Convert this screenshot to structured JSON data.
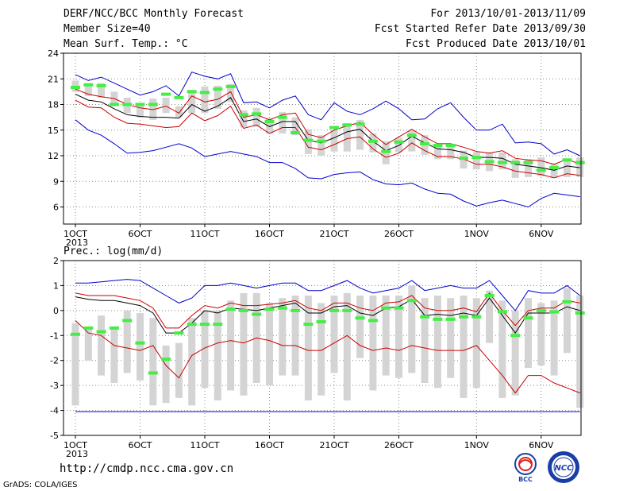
{
  "header": {
    "title": "DERF/NCC/BCC Monthly Forecast",
    "member_size": "Member Size=40",
    "variable": "Mean Surf. Temp.: °C",
    "forecast_period": "For 2013/10/01-2013/11/09",
    "fcst_started": "Fcst Started Refer Date 2013/09/30",
    "fcst_produced": "Fcst Produced Date 2013/10/01"
  },
  "panel2_label": "Prec.: log(mm/d)",
  "footer": {
    "url": "http://cmdp.ncc.cma.gov.cn",
    "grads": "GrADS: COLA/IGES"
  },
  "logos": {
    "bcc": "BCC",
    "ncc": "NCC"
  },
  "colors": {
    "max": "#0000cc",
    "min_max_band": "#cc0000",
    "mean": "#000000",
    "median_bar": "#44ee44",
    "box": "#d4d4d4",
    "grid": "#888888"
  },
  "chart_data": [
    {
      "type": "line",
      "title": "Mean Surf. Temp.: °C",
      "x_start_date": "2013-10-01",
      "x_ticks": [
        "1OCT\n2013",
        "6OCT",
        "11OCT",
        "16OCT",
        "21OCT",
        "26OCT",
        "1NOV",
        "6NOV"
      ],
      "x_tick_days": [
        0,
        5,
        10,
        15,
        20,
        25,
        31,
        36
      ],
      "ylim": [
        4,
        24
      ],
      "yticks": [
        6,
        9,
        12,
        15,
        18,
        21,
        24
      ],
      "grid": true,
      "days": 40,
      "series": [
        {
          "name": "max",
          "values": [
            21.5,
            20.8,
            21.2,
            20.5,
            19.8,
            19.1,
            19.5,
            20.2,
            19.0,
            21.8,
            21.3,
            21.0,
            21.6,
            18.2,
            18.3,
            17.6,
            18.5,
            19.0,
            16.8,
            16.2,
            18.2,
            17.2,
            16.8,
            17.5,
            18.4,
            17.5,
            16.2,
            16.3,
            17.5,
            18.2,
            16.5,
            15.0,
            15.0,
            15.7,
            13.5,
            13.6,
            13.4,
            12.2,
            12.7,
            12.0
          ]
        },
        {
          "name": "upper",
          "values": [
            19.8,
            19.2,
            18.9,
            18.7,
            18.0,
            17.6,
            17.4,
            17.8,
            17.0,
            19.0,
            18.3,
            18.6,
            19.5,
            16.5,
            16.8,
            16.2,
            16.8,
            17.0,
            14.5,
            14.1,
            15.0,
            15.5,
            15.9,
            14.5,
            13.3,
            14.2,
            15.1,
            14.2,
            13.4,
            13.4,
            13.0,
            12.5,
            12.3,
            12.6,
            11.7,
            11.5,
            11.4,
            11.0,
            11.6,
            11.0
          ]
        },
        {
          "name": "mean",
          "values": [
            19.2,
            18.5,
            18.3,
            17.5,
            16.8,
            16.6,
            16.5,
            16.5,
            16.4,
            18.0,
            17.2,
            17.8,
            18.8,
            16.0,
            16.3,
            15.4,
            16.0,
            16.0,
            13.8,
            13.5,
            14.1,
            14.8,
            15.1,
            13.7,
            12.6,
            13.2,
            14.3,
            13.5,
            12.8,
            12.7,
            12.4,
            11.8,
            11.8,
            11.7,
            11.0,
            10.8,
            10.6,
            10.3,
            10.8,
            10.6
          ]
        },
        {
          "name": "lower",
          "values": [
            18.5,
            17.7,
            17.6,
            16.5,
            15.8,
            15.7,
            15.5,
            15.3,
            15.4,
            17.0,
            16.1,
            16.7,
            17.8,
            15.2,
            15.6,
            14.6,
            15.3,
            15.3,
            13.0,
            12.7,
            13.3,
            14.0,
            14.2,
            12.8,
            11.8,
            12.3,
            13.5,
            12.6,
            11.9,
            11.9,
            11.6,
            11.0,
            11.0,
            10.7,
            10.2,
            10.0,
            9.8,
            9.4,
            9.9,
            9.7
          ]
        },
        {
          "name": "min",
          "values": [
            16.2,
            15.0,
            14.4,
            13.4,
            12.3,
            12.4,
            12.6,
            13.0,
            13.4,
            12.9,
            11.9,
            12.2,
            12.5,
            12.2,
            11.9,
            11.2,
            11.2,
            10.5,
            9.4,
            9.3,
            9.8,
            10.0,
            10.1,
            9.2,
            8.7,
            8.6,
            8.8,
            8.1,
            7.6,
            7.5,
            6.7,
            6.1,
            6.5,
            6.8,
            6.4,
            6.0,
            7.0,
            7.6,
            7.4,
            7.2
          ]
        }
      ],
      "box_low": [
        19.5,
        19.0,
        18.8,
        17.8,
        17.0,
        16.5,
        16.2,
        17.0,
        16.5,
        17.0,
        17.0,
        17.5,
        18.3,
        15.3,
        15.4,
        14.6,
        14.6,
        14.4,
        12.2,
        12.0,
        12.5,
        12.5,
        12.7,
        12.4,
        11.0,
        12.4,
        12.5,
        12.1,
        11.6,
        11.6,
        10.5,
        10.4,
        10.2,
        10.4,
        9.4,
        9.5,
        9.6,
        9.4,
        9.5,
        9.5
      ],
      "box_high": [
        20.8,
        20.5,
        20.5,
        19.5,
        18.8,
        18.2,
        18.7,
        18.8,
        17.8,
        19.7,
        20.1,
        20.2,
        20.4,
        17.3,
        17.6,
        16.4,
        17.1,
        16.5,
        15.1,
        14.4,
        15.0,
        15.8,
        16.2,
        14.6,
        13.7,
        14.1,
        15.0,
        14.4,
        13.1,
        13.4,
        12.6,
        12.4,
        12.4,
        12.4,
        11.6,
        11.6,
        11.8,
        11.1,
        11.7,
        11.8
      ],
      "median": [
        20.0,
        20.3,
        20.2,
        18.0,
        18.0,
        18.0,
        18.0,
        19.2,
        18.8,
        19.5,
        19.4,
        19.8,
        20.1,
        16.8,
        16.9,
        16.0,
        16.5,
        14.7,
        13.8,
        13.7,
        15.3,
        15.6,
        15.7,
        13.7,
        12.5,
        13.6,
        14.4,
        13.4,
        13.2,
        13.2,
        11.7,
        11.8,
        11.3,
        11.2,
        11.2,
        11.2,
        10.3,
        10.6,
        11.5,
        11.2
      ]
    },
    {
      "type": "line",
      "title": "Prec.: log(mm/d)",
      "x_start_date": "2013-10-01",
      "x_ticks": [
        "1OCT\n2013",
        "6OCT",
        "11OCT",
        "16OCT",
        "21OCT",
        "26OCT",
        "1NOV",
        "6NOV"
      ],
      "x_tick_days": [
        0,
        5,
        10,
        15,
        20,
        25,
        31,
        36
      ],
      "ylim": [
        -5,
        2
      ],
      "yticks": [
        -5,
        -4,
        -3,
        -2,
        -1,
        0,
        1,
        2
      ],
      "grid": true,
      "days": 40,
      "series": [
        {
          "name": "max",
          "values": [
            1.1,
            1.1,
            1.15,
            1.2,
            1.25,
            1.2,
            0.9,
            0.6,
            0.3,
            0.5,
            1.0,
            1.0,
            1.1,
            1.0,
            0.9,
            1.0,
            1.1,
            1.1,
            0.8,
            0.8,
            1.0,
            1.2,
            0.9,
            0.7,
            0.8,
            0.9,
            1.2,
            0.8,
            0.9,
            1.0,
            0.9,
            0.9,
            1.2,
            0.6,
            0.0,
            0.8,
            0.7,
            0.7,
            1.0,
            0.6
          ]
        },
        {
          "name": "upper",
          "values": [
            0.7,
            0.6,
            0.6,
            0.6,
            0.5,
            0.4,
            0.1,
            -0.7,
            -0.7,
            -0.2,
            0.2,
            0.1,
            0.3,
            0.2,
            0.2,
            0.25,
            0.3,
            0.4,
            0.1,
            0.0,
            0.3,
            0.3,
            0.1,
            0.0,
            0.3,
            0.35,
            0.6,
            0.1,
            0.0,
            0.0,
            0.1,
            -0.05,
            0.7,
            0.0,
            -0.6,
            0.0,
            0.1,
            0.1,
            0.4,
            0.3
          ]
        },
        {
          "name": "mean",
          "values": [
            0.55,
            0.45,
            0.4,
            0.4,
            0.3,
            0.2,
            -0.1,
            -0.9,
            -0.9,
            -0.5,
            0.0,
            -0.1,
            0.1,
            0.05,
            0.0,
            0.1,
            0.2,
            0.3,
            -0.1,
            -0.1,
            0.15,
            0.2,
            -0.1,
            -0.2,
            0.1,
            0.15,
            0.45,
            -0.2,
            -0.15,
            -0.2,
            -0.1,
            -0.2,
            0.5,
            -0.2,
            -0.9,
            -0.1,
            -0.1,
            -0.1,
            0.15,
            0.0
          ]
        },
        {
          "name": "lower",
          "values": [
            -0.4,
            -0.9,
            -1.0,
            -1.4,
            -1.5,
            -1.6,
            -1.4,
            -2.2,
            -2.7,
            -1.8,
            -1.5,
            -1.3,
            -1.2,
            -1.3,
            -1.1,
            -1.2,
            -1.4,
            -1.4,
            -1.6,
            -1.6,
            -1.3,
            -1.0,
            -1.4,
            -1.6,
            -1.5,
            -1.6,
            -1.4,
            -1.5,
            -1.6,
            -1.6,
            -1.6,
            -1.4,
            -2.0,
            -2.6,
            -3.3,
            -2.6,
            -2.6,
            -2.9,
            -3.1,
            -3.3
          ]
        },
        {
          "name": "min",
          "values": [
            -4.05,
            -4.05,
            -4.05,
            -4.05,
            -4.05,
            -4.05,
            -4.05,
            -4.05,
            -4.05,
            -4.05,
            -4.05,
            -4.05,
            -4.05,
            -4.05,
            -4.05,
            -4.05,
            -4.05,
            -4.05,
            -4.05,
            -4.05,
            -4.05,
            -4.05,
            -4.05,
            -4.05,
            -4.05,
            -4.05,
            -4.05,
            -4.05,
            -4.05,
            -4.05,
            -4.05,
            -4.05,
            -4.05,
            -4.05,
            -4.05,
            -4.05,
            -4.05,
            -4.05,
            -4.05,
            -4.05
          ]
        }
      ],
      "box_low": [
        -3.8,
        -2.0,
        -2.6,
        -2.9,
        -2.5,
        -2.8,
        -3.8,
        -3.7,
        -3.5,
        -3.8,
        -3.1,
        -3.6,
        -3.2,
        -3.4,
        -2.9,
        -3.0,
        -2.6,
        -2.6,
        -3.6,
        -3.4,
        -2.5,
        -3.6,
        -1.9,
        -3.2,
        -2.6,
        -2.7,
        -2.5,
        -2.9,
        -3.1,
        -2.7,
        -3.5,
        -3.1,
        -1.3,
        -3.5,
        -3.4,
        -2.3,
        -2.2,
        -2.6,
        -1.7,
        -3.9
      ],
      "box_high": [
        -0.5,
        -0.7,
        -0.2,
        -0.7,
        0.0,
        -0.1,
        -0.3,
        -1.4,
        -1.3,
        -0.3,
        0.0,
        0.0,
        0.4,
        0.7,
        0.7,
        0.3,
        0.5,
        0.6,
        0.6,
        0.3,
        0.6,
        0.7,
        0.6,
        0.6,
        0.6,
        0.6,
        1.0,
        0.5,
        0.6,
        0.5,
        0.6,
        0.5,
        0.8,
        0.4,
        0.0,
        0.5,
        0.3,
        0.4,
        0.9,
        0.6
      ],
      "median": [
        -0.95,
        -0.7,
        -0.85,
        -0.7,
        -0.4,
        -1.3,
        -2.5,
        -1.95,
        -0.9,
        -0.55,
        -0.55,
        -0.55,
        0.05,
        0.0,
        -0.15,
        0.05,
        0.1,
        0.0,
        -0.55,
        -0.45,
        0.0,
        0.0,
        -0.3,
        -0.4,
        0.1,
        0.1,
        0.4,
        -0.25,
        -0.35,
        -0.35,
        -0.25,
        -0.25,
        0.6,
        -0.05,
        -1.0,
        -0.3,
        0.0,
        -0.05,
        0.35,
        -0.1
      ]
    }
  ]
}
